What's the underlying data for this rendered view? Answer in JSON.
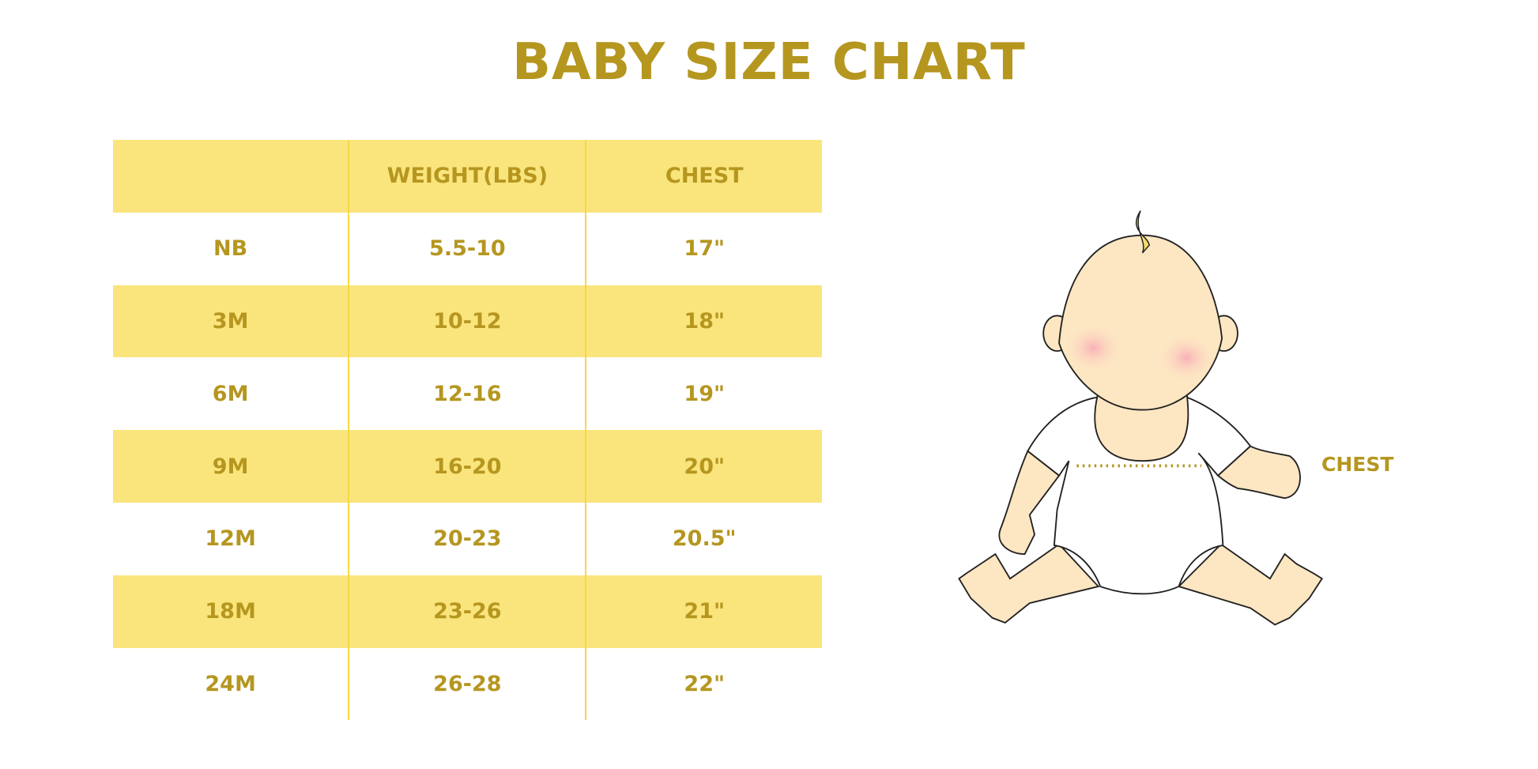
{
  "title": "BABY SIZE CHART",
  "table": {
    "headers": [
      "",
      "WEIGHT(LBS)",
      "CHEST"
    ],
    "rows": [
      [
        "NB",
        "5.5-10",
        "17\""
      ],
      [
        "3M",
        "10-12",
        "18\""
      ],
      [
        "6M",
        "12-16",
        "19\""
      ],
      [
        "9M",
        "16-20",
        "20\""
      ],
      [
        "12M",
        "20-23",
        "20.5\""
      ],
      [
        "18M",
        "23-26",
        "21\""
      ],
      [
        "24M",
        "26-28",
        "22\""
      ]
    ]
  },
  "illustration": {
    "chest_label": "CHEST"
  },
  "colors": {
    "text": "#b5961f",
    "band": "#fae47c",
    "skin": "#fde6c2",
    "cheek": "#f9b7bd"
  }
}
